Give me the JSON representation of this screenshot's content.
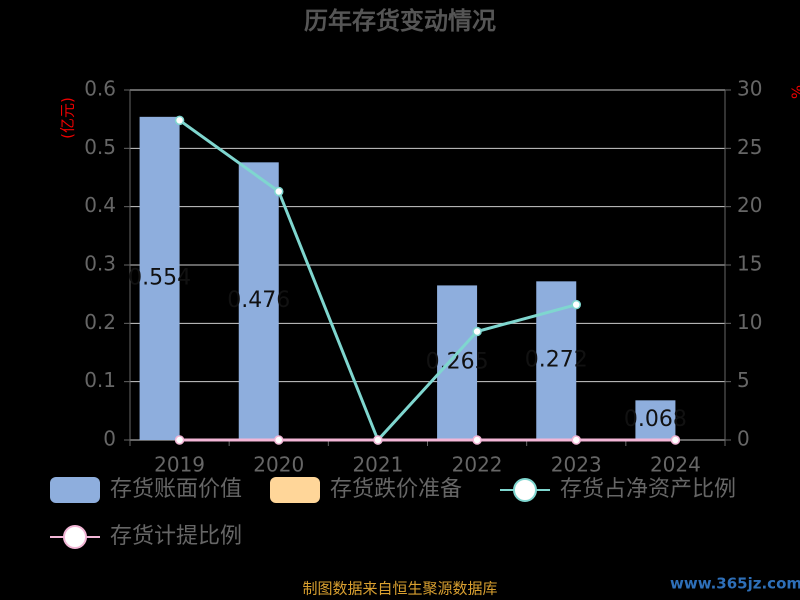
{
  "chart_data": {
    "type": "bar",
    "title": "历年存货变动情况",
    "categories": [
      "2019",
      "2020",
      "2021",
      "2022",
      "2023",
      "2024"
    ],
    "series": [
      {
        "name": "存货账面价值",
        "type": "bar",
        "color": "#8eaedd",
        "values": [
          0.554,
          0.476,
          null,
          0.265,
          0.272,
          0.068
        ]
      },
      {
        "name": "存货跌价准备",
        "type": "bar",
        "color": "#ffd699",
        "values": [
          0,
          0,
          0,
          0,
          0,
          0
        ]
      },
      {
        "name": "存货占净资产比例",
        "type": "line",
        "axis": "y2",
        "color": "#7fd6cf",
        "values": [
          27.4,
          21.3,
          0,
          9.3,
          11.6,
          null
        ]
      },
      {
        "name": "存货计提比例",
        "type": "line",
        "axis": "y2",
        "color": "#f2b6d6",
        "values": [
          0,
          0,
          0,
          0,
          0,
          0
        ]
      }
    ],
    "y_label": "(亿元)",
    "y2_label": "%",
    "ylim": [
      0,
      0.6
    ],
    "yticks": [
      0,
      0.1,
      0.2,
      0.3,
      0.4,
      0.5,
      0.6
    ],
    "y2lim": [
      0,
      30
    ],
    "y2ticks": [
      0,
      5,
      10,
      15,
      20,
      25,
      30
    ],
    "grid": true,
    "source": "制图数据来自恒生聚源数据库",
    "watermark": "www.365jz.com"
  }
}
